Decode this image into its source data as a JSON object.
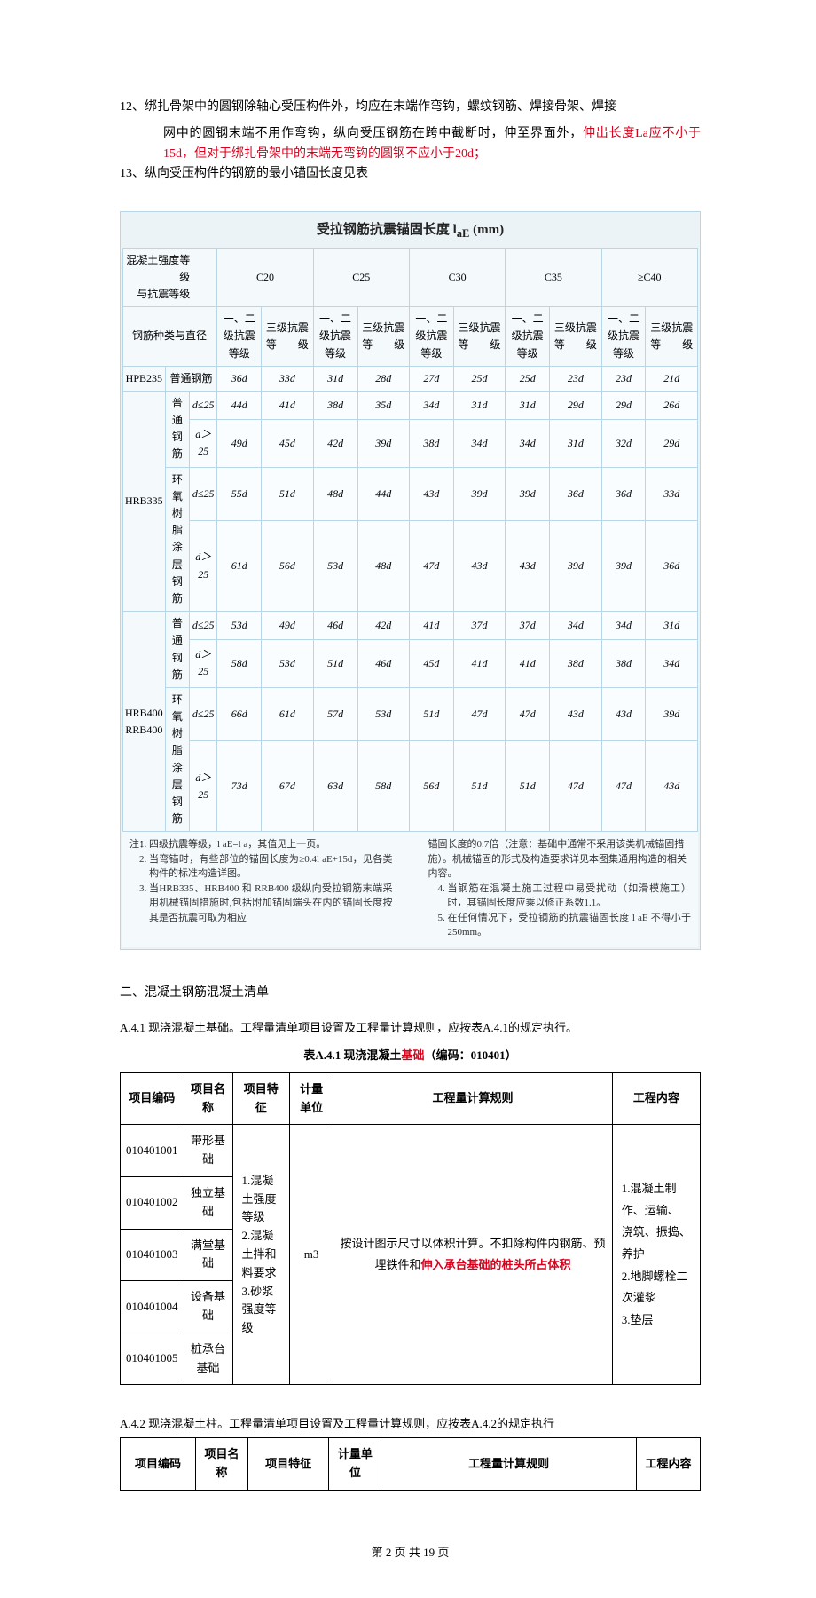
{
  "item12_pre": "12、绑扎骨架中的圆钢除轴心受压构件外，均应在末端作弯钩，螺纹钢筋、焊接骨架、焊接",
  "item12_cont_a": "网中的圆钢末端不用作弯钩，纵向受压钢筋在跨中截断时，伸至界面外，",
  "item12_cont_red": "伸出长度La应不小于15d，但对于绑扎骨架中的末端无弯钩的圆钢不应小于20d；",
  "item13": "13、纵向受压构件的钢筋的最小锚固长度见表",
  "t1": {
    "title": "受拉钢筋抗震锚固长度 l",
    "title_sub": "aE",
    "title_unit": " (mm)",
    "corner_line1": "混凝土强度等级",
    "corner_line2": "与抗震等级",
    "corner_line3": "钢筋种类与直径",
    "grades": [
      "C20",
      "C25",
      "C30",
      "C35",
      "≥C40"
    ],
    "sub_a": "一、二级抗震等级",
    "sub_b": "三级抗震等　　级",
    "rows": [
      {
        "g": "HPB235",
        "t": "普通钢筋",
        "d": "",
        "v": [
          "36d",
          "33d",
          "31d",
          "28d",
          "27d",
          "25d",
          "25d",
          "23d",
          "23d",
          "21d"
        ]
      },
      {
        "g": "HRB335",
        "t": "普通钢筋",
        "d": "d≤25",
        "v": [
          "44d",
          "41d",
          "38d",
          "35d",
          "34d",
          "31d",
          "31d",
          "29d",
          "29d",
          "26d"
        ]
      },
      {
        "g": "",
        "t": "",
        "d": "d＞25",
        "v": [
          "49d",
          "45d",
          "42d",
          "39d",
          "38d",
          "34d",
          "34d",
          "31d",
          "32d",
          "29d"
        ]
      },
      {
        "g": "",
        "t": "环氧树脂涂层钢筋",
        "d": "d≤25",
        "v": [
          "55d",
          "51d",
          "48d",
          "44d",
          "43d",
          "39d",
          "39d",
          "36d",
          "36d",
          "33d"
        ]
      },
      {
        "g": "",
        "t": "",
        "d": "d＞25",
        "v": [
          "61d",
          "56d",
          "53d",
          "48d",
          "47d",
          "43d",
          "43d",
          "39d",
          "39d",
          "36d"
        ]
      },
      {
        "g": "HRB400 RRB400",
        "t": "普通钢筋",
        "d": "d≤25",
        "v": [
          "53d",
          "49d",
          "46d",
          "42d",
          "41d",
          "37d",
          "37d",
          "34d",
          "34d",
          "31d"
        ]
      },
      {
        "g": "",
        "t": "",
        "d": "d＞25",
        "v": [
          "58d",
          "53d",
          "51d",
          "46d",
          "45d",
          "41d",
          "41d",
          "38d",
          "38d",
          "34d"
        ]
      },
      {
        "g": "",
        "t": "环氧树脂涂层钢筋",
        "d": "d≤25",
        "v": [
          "66d",
          "61d",
          "57d",
          "53d",
          "51d",
          "47d",
          "47d",
          "43d",
          "43d",
          "39d"
        ]
      },
      {
        "g": "",
        "t": "",
        "d": "d＞25",
        "v": [
          "73d",
          "67d",
          "63d",
          "58d",
          "56d",
          "51d",
          "51d",
          "47d",
          "47d",
          "43d"
        ]
      }
    ],
    "notes_label": "注：",
    "notes_left": [
      "四级抗震等级，l aE=l a，其值见上一页。",
      "当弯锚时，有些部位的锚固长度为≥0.4l aE+15d，见各类构件的标准构造详图。",
      "当HRB335、HRB400 和 RRB400 级纵向受拉钢筋末端采用机械锚固措施时,包括附加锚固端头在内的锚固长度按其是否抗震可取为相应"
    ],
    "notes_right": [
      "锚固长度的0.7倍（注意：基础中通常不采用该类机械锚固措施）。机械锚固的形式及构造要求详见本图集通用构造的相关内容。",
      "当钢筋在混凝土施工过程中易受扰动（如滑模施工）时，其锚固长度应乘以修正系数1.1。",
      "在任何情况下，受拉钢筋的抗震锚固长度 l aE 不得小于250mm。"
    ]
  },
  "s2_title": "二、混凝土钢筋混凝土清单",
  "para_a41": "A.4.1 现浇混凝土基础。工程量清单项目设置及工程量计算规则，应按表A.4.1的规定执行。",
  "cap_a41": "表A.4.1 现浇混凝土",
  "cap_a41_red": "基础",
  "cap_a41_suf": "（编码：010401）",
  "t2": {
    "headers": [
      "项目编码",
      "项目名称",
      "项目特征",
      "计量单位",
      "工程量计算规则",
      "工程内容"
    ],
    "rows": [
      {
        "code": "010401001",
        "name": "带形基础"
      },
      {
        "code": "010401002",
        "name": "独立基础"
      },
      {
        "code": "010401003",
        "name": "满堂基础"
      },
      {
        "code": "010401004",
        "name": "设备基础"
      },
      {
        "code": "010401005",
        "name": "桩承台基础"
      }
    ],
    "feature_lines": [
      "1.混凝土强度",
      "等级",
      "2.混凝土拌和",
      "料要求",
      "3.砂浆强度等",
      "级"
    ],
    "unit": "m3",
    "rule_pre": "按设计图示尺寸以体积计算。不扣除构件内钢筋、预埋铁件和",
    "rule_red": "伸入承台基础的桩头所占体积",
    "content_lines": [
      "1.混凝土制作、运输、",
      "浇筑、振捣、养护",
      "2.地脚螺栓二次灌浆",
      "3.垫层"
    ]
  },
  "para_a42": "A.4.2 现浇混凝土柱。工程量清单项目设置及工程量计算规则，应按表A.4.2的规定执行",
  "t3": {
    "headers": [
      "项目编码",
      "项目名称",
      "项目特征",
      "计量单位",
      "工程量计算规则",
      "工程内容"
    ]
  },
  "footer": "第 2 页 共 19 页"
}
